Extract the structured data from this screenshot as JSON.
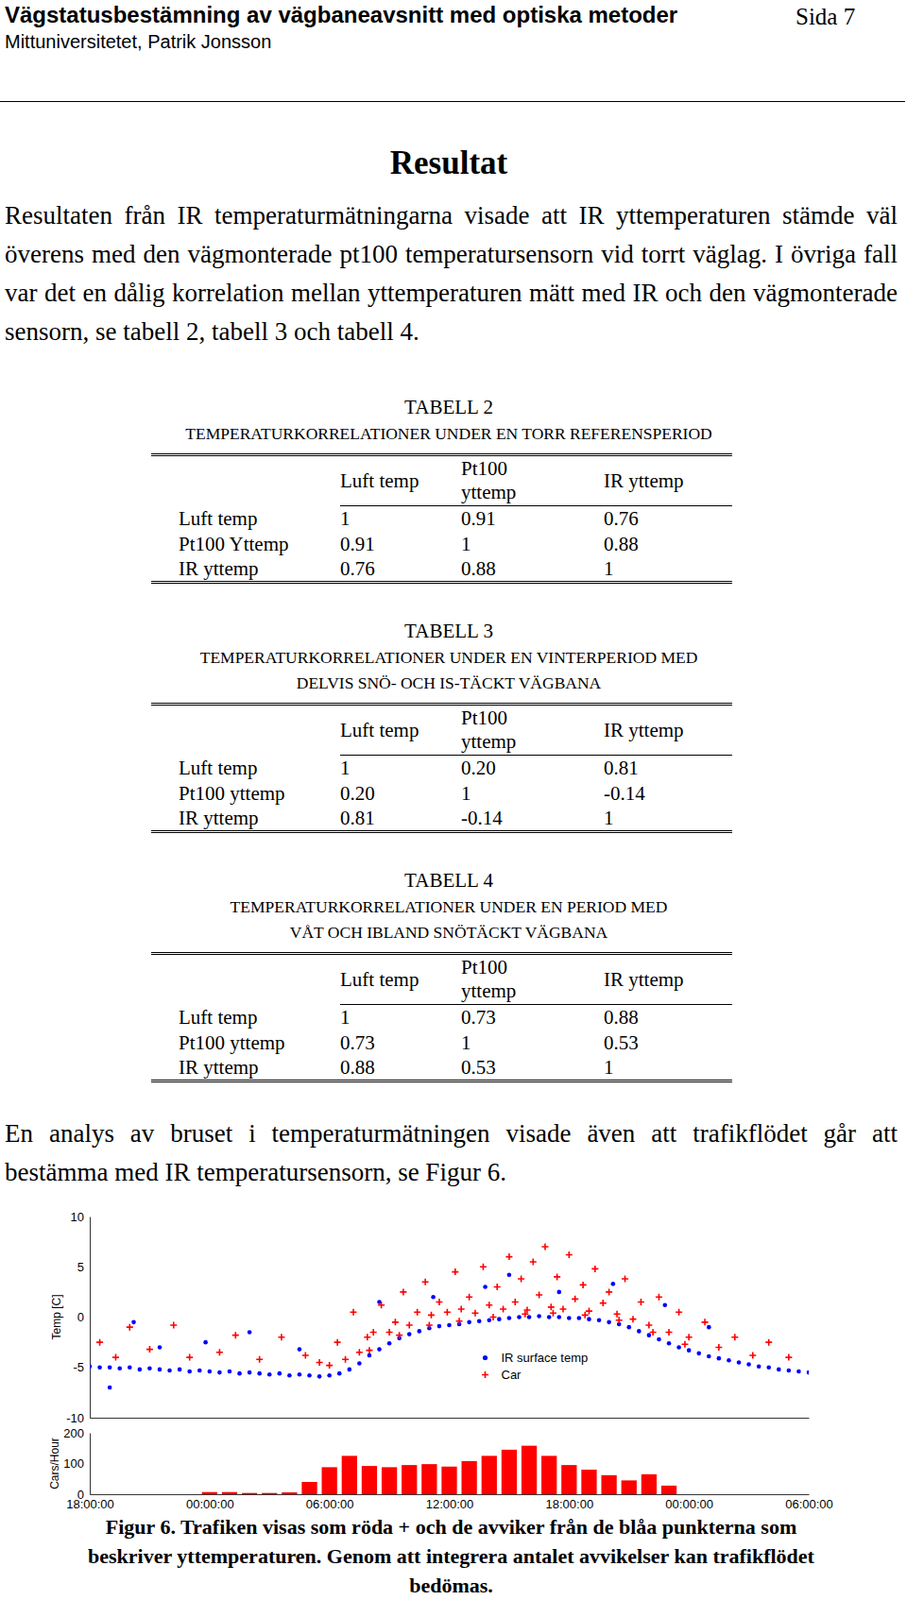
{
  "header": {
    "title": "Vägstatusbestämning av vägbaneavsnitt med optiska metoder",
    "page": "Sida 7",
    "author": "Mittuniversitetet, Patrik Jonsson"
  },
  "section_title": "Resultat",
  "paragraphs": [
    "Resultaten från IR temperaturmätningarna visade att IR yttemperaturen stämde väl överens med den vägmonterade pt100 temperatursensorn vid torrt väglag. I övriga fall var det en dålig korrelation mellan yttemperaturen mätt med IR och den vägmonterade sensorn, se tabell 2, tabell 3 och tabell 4.",
    "En analys av bruset i temperaturmätningen visade även att trafikflödet går att bestämma med IR temperatursensorn, se Figur 6."
  ],
  "tables": [
    {
      "label": "TABELL 2",
      "caption": [
        "TEMPERATURKORRELATIONER UNDER EN TORR REFERENSPERIOD"
      ],
      "columns": [
        [
          "Luft temp"
        ],
        [
          "Pt100",
          "yttemp"
        ],
        [
          "IR yttemp"
        ]
      ],
      "rows": [
        {
          "label": "Luft temp",
          "values": [
            "1",
            "0.91",
            "0.76"
          ]
        },
        {
          "label": "Pt100 Yttemp",
          "values": [
            "0.91",
            "1",
            "0.88"
          ]
        },
        {
          "label": "IR yttemp",
          "values": [
            "0.76",
            "0.88",
            "1"
          ]
        }
      ]
    },
    {
      "label": "TABELL 3",
      "caption": [
        "TEMPERATURKORRELATIONER UNDER EN VINTERPERIOD MED",
        "DELVIS SNÖ- OCH IS-TÄCKT VÄGBANA"
      ],
      "columns": [
        [
          "Luft temp"
        ],
        [
          "Pt100",
          "yttemp"
        ],
        [
          "IR yttemp"
        ]
      ],
      "rows": [
        {
          "label": "Luft temp",
          "values": [
            "1",
            "0.20",
            "0.81"
          ]
        },
        {
          "label": "Pt100 yttemp",
          "values": [
            "0.20",
            "1",
            "-0.14"
          ]
        },
        {
          "label": "IR yttemp",
          "values": [
            "0.81",
            "-0.14",
            "1"
          ]
        }
      ]
    },
    {
      "label": "TABELL 4",
      "caption": [
        "TEMPERATURKORRELATIONER UNDER EN PERIOD MED",
        "VÅT OCH IBLAND SNÖTÄCKT VÄGBANA"
      ],
      "columns": [
        [
          "Luft temp"
        ],
        [
          "Pt100",
          "yttemp"
        ],
        [
          "IR yttemp"
        ]
      ],
      "rows": [
        {
          "label": "Luft temp",
          "values": [
            "1",
            "0.73",
            "0.88"
          ]
        },
        {
          "label": "Pt100 yttemp",
          "values": [
            "0.73",
            "1",
            "0.53"
          ]
        },
        {
          "label": "IR yttemp",
          "values": [
            "0.88",
            "0.53",
            "1"
          ]
        }
      ]
    }
  ],
  "chart_data": [
    {
      "type": "scatter",
      "y_label": "Temp [C]",
      "xlim": [
        0,
        36
      ],
      "ylim": [
        -10,
        10
      ],
      "yticks": [
        -10,
        -5,
        0,
        5,
        10
      ],
      "tick_labels": "y",
      "legend": "center",
      "series": [
        {
          "name": "IR surface temp",
          "color": "#0000ff",
          "marker": "circle",
          "x": [
            0,
            0.5,
            1,
            1.5,
            2,
            2.5,
            3,
            3.5,
            4,
            4.5,
            5,
            5.5,
            6,
            6.5,
            7,
            7.5,
            8,
            8.5,
            9,
            9.5,
            10,
            10.5,
            11,
            11.5,
            12,
            12.5,
            13,
            13.5,
            14,
            14.5,
            15,
            15.5,
            16,
            16.5,
            17,
            17.5,
            18,
            18.5,
            19,
            19.5,
            20,
            20.5,
            21,
            21.5,
            22,
            22.5,
            23,
            23.5,
            24,
            24.5,
            25,
            25.5,
            26,
            26.5,
            27,
            27.5,
            28,
            28.5,
            29,
            29.5,
            30,
            30.5,
            31,
            31.5,
            32,
            32.5,
            33,
            33.5,
            34,
            34.5,
            35,
            35.5,
            36,
            1,
            2.2,
            3.5,
            5.8,
            8,
            10.5,
            14.5,
            17.2,
            19.8,
            21,
            23.5,
            26.2,
            28.8,
            31
          ],
          "values": [
            -4.9,
            -5.0,
            -5.0,
            -5.1,
            -5.0,
            -5.2,
            -5.1,
            -5.2,
            -5.3,
            -5.2,
            -5.4,
            -5.3,
            -5.4,
            -5.5,
            -5.4,
            -5.6,
            -5.5,
            -5.6,
            -5.7,
            -5.6,
            -5.8,
            -5.7,
            -5.8,
            -5.9,
            -5.8,
            -5.6,
            -5.2,
            -4.6,
            -3.8,
            -3.2,
            -2.6,
            -2.1,
            -1.7,
            -1.4,
            -1.1,
            -0.9,
            -0.8,
            -0.7,
            -0.5,
            -0.4,
            -0.3,
            -0.2,
            -0.1,
            0,
            0,
            0.1,
            0,
            0,
            -0.1,
            -0.1,
            -0.2,
            -0.3,
            -0.5,
            -0.7,
            -1.0,
            -1.4,
            -1.8,
            -2.2,
            -2.6,
            -3.0,
            -3.3,
            -3.6,
            -3.9,
            -4.1,
            -4.3,
            -4.5,
            -4.7,
            -4.9,
            -5.0,
            -5.2,
            -5.3,
            -5.4,
            -5.5,
            -7,
            -0.5,
            -3,
            -2.5,
            -1.5,
            -3.2,
            1.5,
            2,
            3,
            4.2,
            2.5,
            3.3,
            1.2,
            -1
          ]
        },
        {
          "name": "Car",
          "color": "#ff0000",
          "marker": "plus",
          "x": [
            0.5,
            1.3,
            2,
            3,
            4.2,
            5,
            6.5,
            7.3,
            8.5,
            9.6,
            10.8,
            11.5,
            12,
            12.4,
            12.8,
            13.2,
            13.5,
            13.9,
            14.2,
            14.6,
            15,
            15.3,
            15.7,
            16,
            16.4,
            16.8,
            17.1,
            17.5,
            17.9,
            18.3,
            18.6,
            19,
            19.3,
            19.7,
            20,
            20.4,
            20.7,
            21,
            21.3,
            21.6,
            21.9,
            22.2,
            22.5,
            22.8,
            23.1,
            23.4,
            23.7,
            24,
            24.3,
            24.7,
            25,
            25.3,
            25.7,
            26,
            26.4,
            26.8,
            27.2,
            27.6,
            28,
            28.5,
            29,
            29.5,
            30,
            30.8,
            31.5,
            32.3,
            33.2,
            34,
            35,
            14,
            15.5,
            17,
            18.5,
            20.2,
            21.8,
            23.2,
            24.8,
            26.5,
            28.2,
            29.8
          ],
          "values": [
            -2.5,
            -4,
            -1,
            -3.2,
            -0.8,
            -4,
            -3.5,
            -1.8,
            -4.2,
            -2,
            -3.8,
            -4.5,
            -4.8,
            -2.5,
            -4.2,
            0.5,
            -3.5,
            -2,
            -1.5,
            1.2,
            -1.5,
            -0.5,
            2.5,
            -0.8,
            0.5,
            3.5,
            0.2,
            1.5,
            0.5,
            4.5,
            0.8,
            2,
            0.4,
            5,
            1.2,
            3,
            0.8,
            6,
            1.5,
            3.8,
            0.7,
            5.5,
            2.2,
            7,
            1,
            4,
            0.8,
            6.2,
            1.8,
            3.2,
            0.6,
            4.8,
            1.4,
            2.5,
            0.3,
            3.8,
            -0.2,
            1.5,
            -0.8,
            2,
            -1.5,
            0.5,
            -2,
            -0.5,
            -3,
            -2,
            -3.8,
            -2.5,
            -4,
            -3.3,
            -1.8,
            -0.8,
            -0.4,
            0,
            0.3,
            0.4,
            0.2,
            -0.3,
            -1.5,
            -2.7
          ]
        }
      ]
    },
    {
      "type": "bar",
      "y_label": "Cars/Hour",
      "color": "#ff0000",
      "x": [
        6,
        7,
        8,
        9,
        10,
        11,
        12,
        13,
        14,
        15,
        16,
        17,
        18,
        19,
        20,
        21,
        22,
        23,
        24,
        25,
        26,
        27,
        28,
        29
      ],
      "values": [
        7,
        7,
        4,
        4,
        6,
        40,
        88,
        125,
        92,
        88,
        95,
        98,
        90,
        108,
        125,
        145,
        158,
        125,
        95,
        80,
        62,
        45,
        65,
        28
      ],
      "xlim": [
        0,
        36
      ],
      "xticks": [
        {
          "value": 0,
          "label": "18:00:00"
        },
        {
          "value": 6,
          "label": "00:00:00"
        },
        {
          "value": 12,
          "label": "06:00:00"
        },
        {
          "value": 18,
          "label": "12:00:00"
        },
        {
          "value": 24,
          "label": "18:00:00"
        },
        {
          "value": 30,
          "label": "00:00:00"
        },
        {
          "value": 36,
          "label": "06:00:00"
        }
      ],
      "ylim": [
        0,
        200
      ],
      "yticks": [
        0,
        100,
        200
      ]
    }
  ],
  "figure_caption": [
    "Figur 6. Trafiken visas som röda + och de avviker från de blåa punkterna som",
    "beskriver yttemperaturen. Genom att integrera antalet avvikelser kan trafikflödet",
    "bedömas."
  ]
}
